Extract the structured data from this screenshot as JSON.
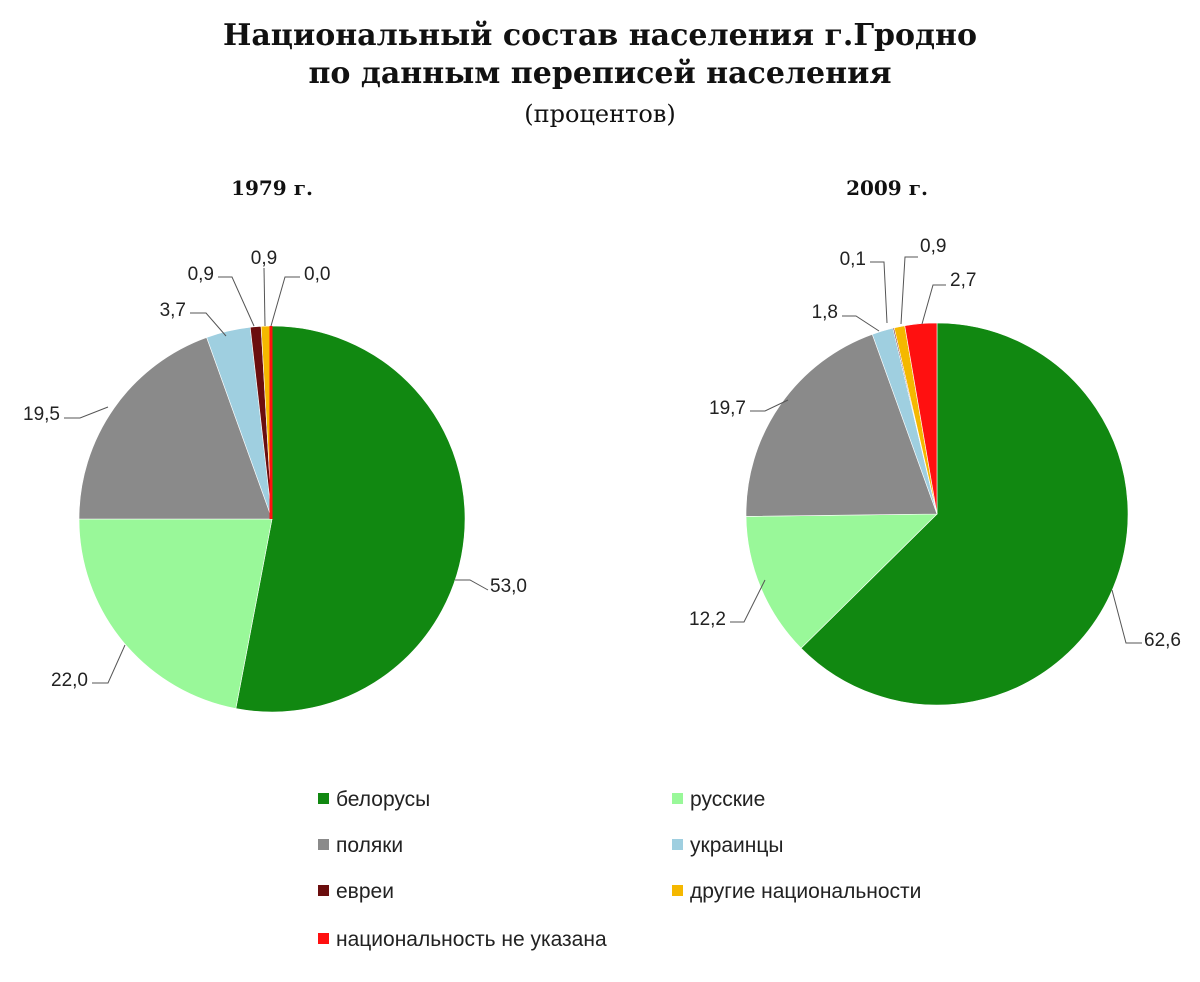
{
  "title": {
    "line1": "Национальный состав населения г.Гродно",
    "line2": "по данным переписей населения",
    "unit": "(процентов)"
  },
  "colors": {
    "белорусы": "#118811",
    "русские": "#99f899",
    "поляки": "#8a8a8a",
    "украинцы": "#9fcfe0",
    "евреи": "#6b0e0e",
    "другие национальности": "#f5b800",
    "национальность не указана": "#ff1010"
  },
  "legend": [
    "белорусы",
    "русские",
    "поляки",
    "украинцы",
    "евреи",
    "другие национальности",
    "национальность не указана"
  ],
  "chart_data": [
    {
      "type": "pie",
      "title": "1979 г.",
      "categories": [
        "белорусы",
        "русские",
        "поляки",
        "украинцы",
        "евреи",
        "другие национальности",
        "национальность не указана"
      ],
      "values": [
        53.0,
        22.0,
        19.5,
        3.7,
        0.9,
        0.9,
        0.0
      ],
      "labels": [
        "53,0",
        "22,0",
        "19,5",
        "3,7",
        "0,9",
        "0,9",
        "0,0"
      ]
    },
    {
      "type": "pie",
      "title": "2009 г.",
      "categories": [
        "белорусы",
        "русские",
        "поляки",
        "украинцы",
        "евреи",
        "другие национальности",
        "национальность не указана"
      ],
      "values": [
        62.6,
        12.2,
        19.7,
        1.8,
        0.1,
        0.9,
        2.7
      ],
      "labels": [
        "62,6",
        "12,2",
        "19,7",
        "1,8",
        "0,1",
        "0,9",
        "2,7"
      ]
    }
  ]
}
